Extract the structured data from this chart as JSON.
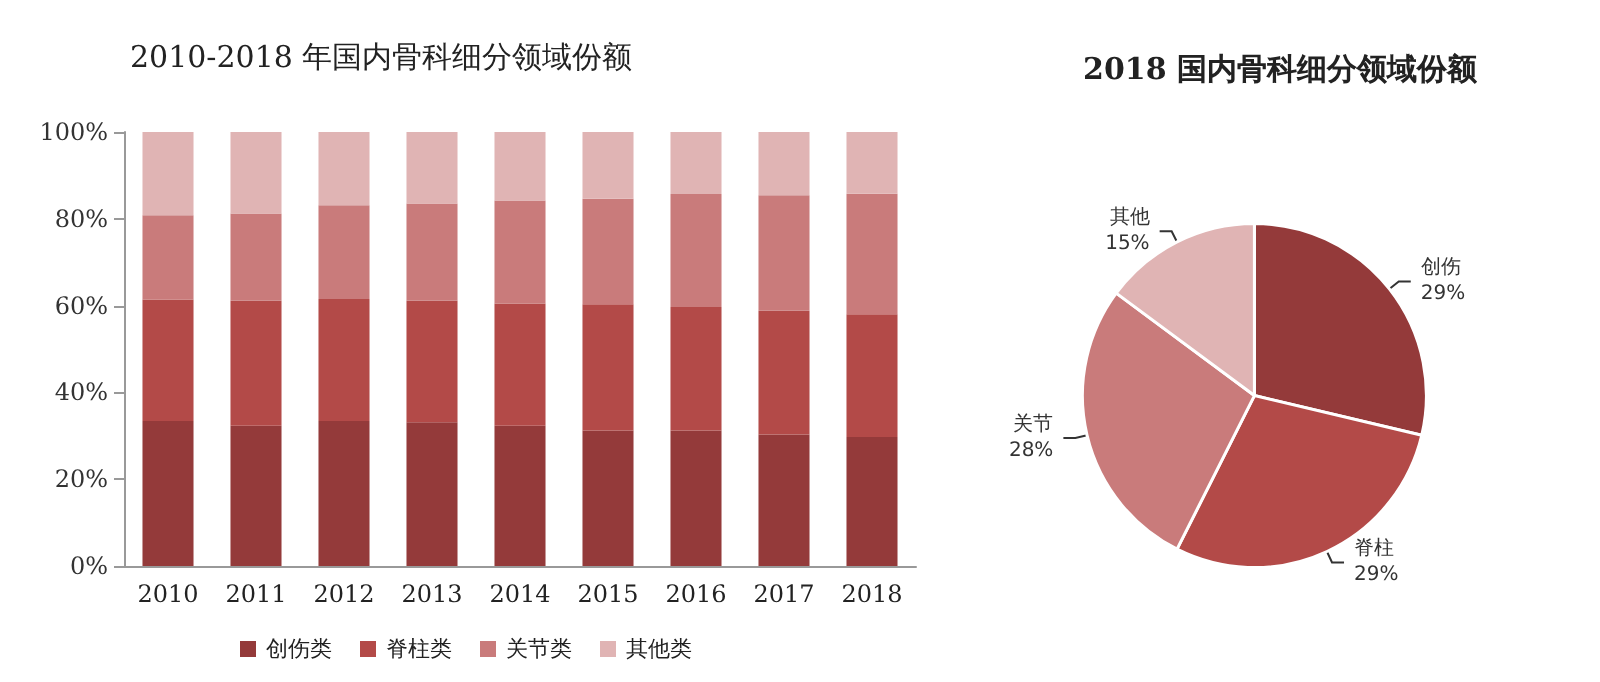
{
  "chart_data": [
    {
      "type": "bar",
      "title": "2010-2018 年国内骨科细分领域份额",
      "stacked": true,
      "categories": [
        "2010",
        "2011",
        "2012",
        "2013",
        "2014",
        "2015",
        "2016",
        "2017",
        "2018"
      ],
      "series": [
        {
          "name": "创伤类",
          "color": "#943a3a",
          "values": [
            33.4,
            32.3,
            33.4,
            33.1,
            32.3,
            31.2,
            31.2,
            30.3,
            29.7
          ]
        },
        {
          "name": "脊柱类",
          "color": "#b34a48",
          "values": [
            28.0,
            28.8,
            28.1,
            28.0,
            28.2,
            29.1,
            28.5,
            28.5,
            28.3
          ]
        },
        {
          "name": "关节类",
          "color": "#c97b7b",
          "values": [
            19.4,
            20.1,
            21.6,
            22.4,
            23.7,
            24.3,
            26.0,
            26.6,
            27.8
          ]
        },
        {
          "name": "其他类",
          "color": "#e0b4b4",
          "values": [
            19.2,
            18.8,
            16.9,
            16.5,
            15.8,
            15.4,
            14.3,
            14.6,
            14.2
          ]
        }
      ],
      "ylim": [
        0,
        100
      ],
      "yticks": [
        {
          "value": 0,
          "label": "0%"
        },
        {
          "value": 20,
          "label": "20%"
        },
        {
          "value": 40,
          "label": "40%"
        },
        {
          "value": 60,
          "label": "60%"
        },
        {
          "value": 80,
          "label": "80%"
        },
        {
          "value": 100,
          "label": "100%"
        }
      ],
      "grid": false,
      "legend": "bottom"
    },
    {
      "type": "pie",
      "title": "2018 国内骨科细分领域份额",
      "categories": [
        "创伤",
        "脊柱",
        "关节",
        "其他"
      ],
      "values": [
        29,
        29,
        28,
        15
      ],
      "colors": [
        "#943a3a",
        "#b34a48",
        "#c97b7b",
        "#e0b4b4"
      ],
      "value_labels": [
        "29%",
        "29%",
        "28%",
        "15%"
      ]
    }
  ]
}
